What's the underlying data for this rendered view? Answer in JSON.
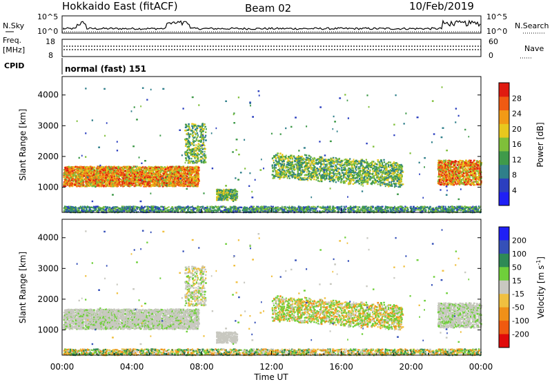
{
  "header": {
    "station": "Hokkaido East (fitACF)",
    "beam": "Beam 02",
    "date": "10/Feb/2019"
  },
  "strip": {
    "nsky_label": "N.Sky",
    "nsky_ticks": [
      "10^5",
      "10^0"
    ],
    "nsearch_label": "N.Search",
    "nsearch_ticks": [
      "10^5",
      "10^0"
    ],
    "freq_label_1": "Freq.",
    "freq_label_2": "[MHz]",
    "freq_ticks": [
      "18",
      "8"
    ],
    "nave_label": "Nave",
    "nave_ticks": [
      "60",
      "0"
    ],
    "cpid_label": "CPID",
    "cpid_value": "normal (fast) 151"
  },
  "panels": {
    "ylabel": "Slant Range [km]",
    "xlabel": "Time UT",
    "power_label": "Power [dB]",
    "velocity_label": "Velocity",
    "velocity_unit": "[m s",
    "velocity_unit_exp": "-1",
    "velocity_unit_close": "]"
  },
  "chart_data": {
    "type": "heatmap",
    "xlabel": "Time UT",
    "ylabel": "Slant Range [km]",
    "x_ticks": [
      "00:00",
      "04:00",
      "08:00",
      "12:00",
      "16:00",
      "20:00",
      "00:00"
    ],
    "x_range_hours": [
      0,
      24
    ],
    "y_ticks": [
      1000,
      2000,
      3000,
      4000
    ],
    "y_range_km": [
      180,
      4600
    ],
    "power_scale": {
      "label": "Power [dB]",
      "ticks": [
        4,
        8,
        12,
        16,
        20,
        24,
        28
      ],
      "range": [
        0,
        30
      ],
      "colors": [
        "#1f1ff5",
        "#2b3fbf",
        "#2f7f8a",
        "#3f9a4a",
        "#7fbf3a",
        "#e8c81e",
        "#f29a16",
        "#f05a12",
        "#e01a10"
      ]
    },
    "velocity_scale": {
      "label": "Velocity [m s-1]",
      "ticks": [
        "200",
        "100",
        "50",
        "15",
        "-15",
        "-50",
        "-100",
        "-200"
      ],
      "colors": [
        "#1f1ff5",
        "#3550b8",
        "#2e8a55",
        "#6fcf3a",
        "#c8c8c0",
        "#f0c040",
        "#f09018",
        "#f05a10",
        "#e00a0a"
      ]
    },
    "echo_regions": [
      {
        "t_start": 0.0,
        "t_end": 7.8,
        "r_low": 1050,
        "r_high": 1700,
        "power": "20-28 dB",
        "velocity": "±15 m/s"
      },
      {
        "t_start": 7.0,
        "t_end": 8.2,
        "r_low": 1800,
        "r_high": 3100,
        "power": "12-20 dB",
        "velocity": "±15 m/s"
      },
      {
        "t_start": 8.8,
        "t_end": 10.0,
        "r_low": 600,
        "r_high": 950,
        "power": "16-22 dB",
        "velocity": "±15 m/s"
      },
      {
        "t_start": 12.0,
        "t_end": 19.5,
        "r_low": 1350,
        "r_high": 2100,
        "power": "12-24 dB",
        "velocity": "15-50 m/s"
      },
      {
        "t_start": 21.5,
        "t_end": 24.0,
        "r_low": 1100,
        "r_high": 1900,
        "power": "20-28 dB",
        "velocity": "±15 m/s"
      },
      {
        "t_start": 0.0,
        "t_end": 24.0,
        "r_low": 180,
        "r_high": 400,
        "power": "8-20 dB",
        "velocity": "-50 to 50 m/s"
      }
    ]
  }
}
